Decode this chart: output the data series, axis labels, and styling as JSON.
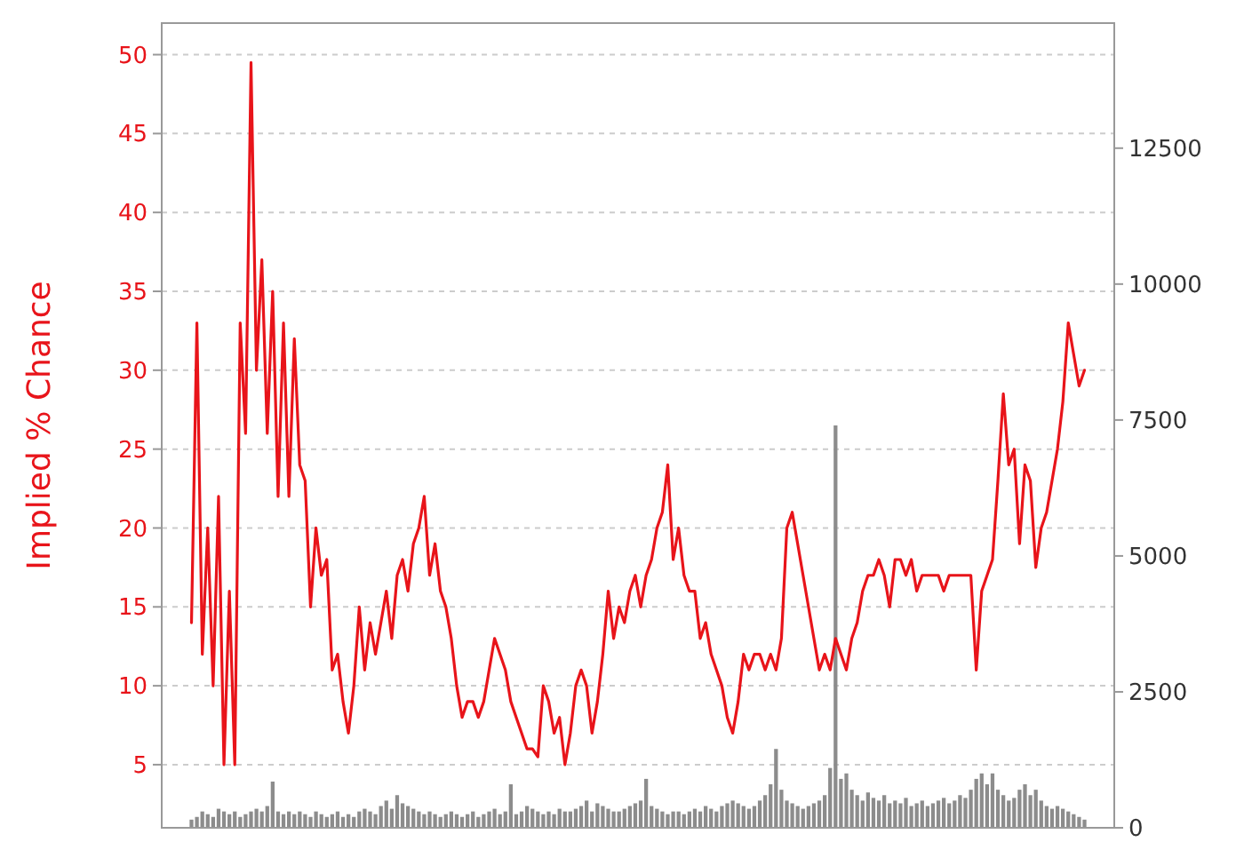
{
  "chart_data": {
    "type": "line",
    "ylabel": "Implied % Chance",
    "ylim": [
      1,
      52
    ],
    "yticks": [
      5,
      10,
      15,
      20,
      25,
      30,
      35,
      40,
      45,
      50
    ],
    "y2lim": [
      0,
      14800
    ],
    "y2ticks": [
      0,
      2500,
      5000,
      7500,
      10000,
      12500
    ],
    "grid": "y",
    "categories": [
      null,
      null,
      null,
      null,
      null,
      null,
      null,
      null,
      null,
      null,
      null,
      null,
      null,
      null,
      null,
      null,
      null,
      null,
      null,
      null,
      null,
      null,
      null,
      null,
      null,
      null,
      null,
      null,
      null,
      null,
      null,
      null,
      null,
      null,
      null,
      null,
      null,
      null,
      null,
      null,
      null,
      null,
      null,
      null,
      null,
      null,
      null,
      null,
      null,
      null,
      null,
      null,
      null,
      null,
      null,
      null,
      null,
      null,
      null,
      null,
      null,
      null,
      null,
      null,
      null,
      null,
      null,
      null,
      null,
      null,
      null,
      null,
      null,
      null,
      null,
      null,
      null,
      null,
      null,
      null,
      null,
      null,
      null,
      null,
      null,
      null,
      null,
      null,
      null,
      null,
      null,
      null,
      null,
      null,
      null,
      null,
      null,
      null,
      null,
      null,
      null,
      null,
      null,
      null,
      null,
      null,
      null,
      null,
      null,
      null,
      null,
      null,
      null,
      null,
      null,
      null,
      null,
      null,
      null,
      null,
      null,
      null,
      null,
      null,
      null,
      null,
      null,
      null,
      null,
      null,
      null,
      null,
      null,
      null,
      null,
      null,
      null,
      null,
      null,
      null,
      null,
      null,
      null,
      null,
      null,
      null,
      null,
      null,
      null,
      null,
      null,
      null,
      null,
      null,
      null,
      null,
      null,
      null,
      null,
      null,
      null,
      null,
      null,
      null,
      null,
      null
    ],
    "series": [
      {
        "type": "bar",
        "axis": "y2",
        "color": "#8c8c8c",
        "values": [
          150,
          200,
          300,
          250,
          200,
          350,
          300,
          250,
          300,
          200,
          250,
          300,
          350,
          300,
          400,
          850,
          300,
          250,
          300,
          250,
          300,
          250,
          200,
          300,
          250,
          200,
          250,
          300,
          200,
          250,
          200,
          300,
          350,
          300,
          250,
          400,
          500,
          350,
          600,
          450,
          400,
          350,
          300,
          250,
          300,
          250,
          200,
          250,
          300,
          250,
          200,
          250,
          300,
          200,
          250,
          300,
          350,
          250,
          300,
          800,
          250,
          300,
          400,
          350,
          300,
          250,
          300,
          250,
          350,
          300,
          300,
          350,
          400,
          500,
          300,
          450,
          400,
          350,
          300,
          300,
          350,
          400,
          450,
          500,
          900,
          400,
          350,
          300,
          250,
          300,
          300,
          250,
          300,
          350,
          300,
          400,
          350,
          300,
          400,
          450,
          500,
          450,
          400,
          350,
          400,
          500,
          600,
          800,
          1450,
          700,
          500,
          450,
          400,
          350,
          400,
          450,
          500,
          600,
          1100,
          7400,
          900,
          1000,
          700,
          600,
          500,
          650,
          550,
          500,
          600,
          450,
          500,
          450,
          550,
          400,
          450,
          500,
          400,
          450,
          500,
          550,
          450,
          500,
          600,
          550,
          700,
          900,
          1000,
          800,
          1000,
          700,
          600,
          500,
          550,
          700,
          800,
          600,
          700,
          500,
          400,
          350,
          400,
          350,
          300,
          250,
          200,
          150
        ]
      },
      {
        "color": "#e8141a",
        "values": [
          14,
          33,
          12,
          20,
          10,
          22,
          5,
          16,
          5,
          33,
          26,
          49.5,
          30,
          37,
          26,
          35,
          22,
          33,
          22,
          32,
          24,
          23,
          15,
          20,
          17,
          18,
          11,
          12,
          9,
          7,
          10,
          15,
          11,
          14,
          12,
          14,
          16,
          13,
          17,
          18,
          16,
          19,
          20,
          22,
          17,
          19,
          16,
          15,
          13,
          10,
          8,
          9,
          9,
          8,
          9,
          11,
          13,
          12,
          11,
          9,
          8,
          7,
          6,
          6,
          5.5,
          10,
          9,
          7,
          8,
          5,
          7,
          10,
          11,
          10,
          7,
          9,
          12,
          16,
          13,
          15,
          14,
          16,
          17,
          15,
          17,
          18,
          20,
          21,
          24,
          18,
          20,
          17,
          16,
          16,
          13,
          14,
          12,
          11,
          10,
          8,
          7,
          9,
          12,
          11,
          12,
          12,
          11,
          12,
          11,
          13,
          20,
          21,
          19,
          17,
          15,
          13,
          11,
          12,
          11,
          13,
          12,
          11,
          13,
          14,
          16,
          17,
          17,
          18,
          17,
          15,
          18,
          18,
          17,
          18,
          16,
          17,
          17,
          17,
          17,
          16,
          17,
          17,
          17,
          17,
          17,
          11,
          16,
          17,
          18,
          23,
          28.5,
          24,
          25,
          19,
          24,
          23,
          17.5,
          20,
          21,
          23,
          25,
          28,
          33,
          31,
          29,
          30
        ]
      }
    ]
  }
}
